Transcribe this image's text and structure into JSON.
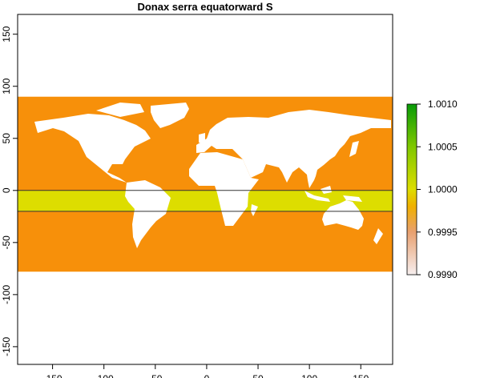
{
  "chart_data": {
    "type": "raster-map",
    "title": "Donax serra equatorward S",
    "xlim": [
      -184,
      181
    ],
    "ylim": [
      -167,
      169
    ],
    "xticks": [
      -150,
      -100,
      -50,
      0,
      50,
      100,
      150
    ],
    "yticks": [
      150,
      100,
      50,
      0,
      -50,
      -100,
      -150
    ],
    "bands": [
      {
        "ymin": -78,
        "ymax": 90,
        "color": "#f7900a"
      },
      {
        "ymin": -20,
        "ymax": 0,
        "color": "#dddd00"
      }
    ],
    "hlines": [
      0,
      -20
    ],
    "colorbar": {
      "lim": [
        0.999,
        1.001
      ],
      "ticks": [
        {
          "value": 1.001,
          "label": "1.0010"
        },
        {
          "value": 1.0005,
          "label": "1.0005"
        },
        {
          "value": 1.0,
          "label": "1.0000"
        },
        {
          "value": 0.9995,
          "label": "0.9995"
        },
        {
          "value": 0.999,
          "label": "0.9990"
        }
      ],
      "stops": [
        {
          "value": 0.999,
          "color": "#f7efef"
        },
        {
          "value": 0.9995,
          "color": "#e8a070"
        },
        {
          "value": 0.9998,
          "color": "#f0b000"
        },
        {
          "value": 1.0,
          "color": "#dddd00"
        },
        {
          "value": 1.0005,
          "color": "#80c800"
        },
        {
          "value": 1.001,
          "color": "#089b08"
        }
      ]
    }
  }
}
